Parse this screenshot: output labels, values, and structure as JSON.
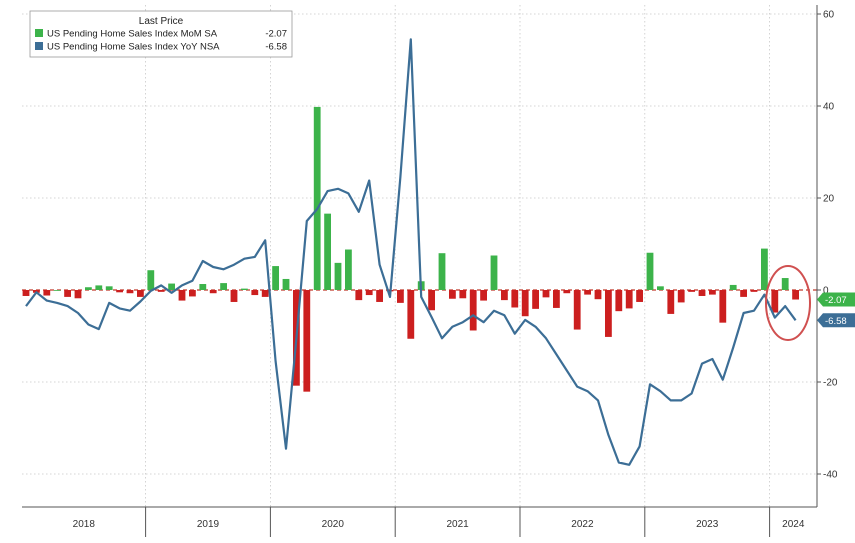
{
  "chart_data": {
    "type": "bar",
    "legend": {
      "title": "Last Price",
      "placement": "top-left",
      "entries": [
        {
          "label": "US Pending Home Sales Index MoM SA",
          "value": "-2.07",
          "color": "#3cb34a"
        },
        {
          "label": "US Pending Home Sales Index YoY NSA",
          "value": "-6.58",
          "color": "#3c6e96"
        }
      ]
    },
    "y_axis": {
      "side": "right",
      "ylim": [
        -48,
        62
      ],
      "ticks": [
        "60",
        "40",
        "20",
        "0",
        "-20",
        "-40"
      ],
      "tick_values": [
        60,
        40,
        20,
        0,
        -20,
        -40
      ]
    },
    "x_axis": {
      "years": [
        "2018",
        "2019",
        "2020",
        "2021",
        "2022",
        "2023",
        "2024"
      ],
      "start": "2018-01",
      "end": "2024-03"
    },
    "grid": true,
    "colors": {
      "positive_bar": "#3cb34a",
      "negative_bar": "#cc1f1f",
      "line": "#3c6e96",
      "mom_badge": "#3cb34a",
      "yoy_badge": "#3c6e96",
      "highlight": "#d05050"
    },
    "last_value_badges": [
      {
        "label": "-2.07",
        "value": -2.07,
        "series": "mom"
      },
      {
        "label": "-6.58",
        "value": -6.58,
        "series": "yoy"
      }
    ],
    "series": [
      {
        "name": "US Pending Home Sales Index MoM SA",
        "kind": "bar",
        "x": [
          "2018-01",
          "2018-02",
          "2018-03",
          "2018-04",
          "2018-05",
          "2018-06",
          "2018-07",
          "2018-08",
          "2018-09",
          "2018-10",
          "2018-11",
          "2018-12",
          "2019-01",
          "2019-02",
          "2019-03",
          "2019-04",
          "2019-05",
          "2019-06",
          "2019-07",
          "2019-08",
          "2019-09",
          "2019-10",
          "2019-11",
          "2019-12",
          "2020-01",
          "2020-02",
          "2020-03",
          "2020-04",
          "2020-05",
          "2020-06",
          "2020-07",
          "2020-08",
          "2020-09",
          "2020-10",
          "2020-11",
          "2020-12",
          "2021-01",
          "2021-02",
          "2021-03",
          "2021-04",
          "2021-05",
          "2021-06",
          "2021-07",
          "2021-08",
          "2021-09",
          "2021-10",
          "2021-11",
          "2021-12",
          "2022-01",
          "2022-02",
          "2022-03",
          "2022-04",
          "2022-05",
          "2022-06",
          "2022-07",
          "2022-08",
          "2022-09",
          "2022-10",
          "2022-11",
          "2022-12",
          "2023-01",
          "2023-02",
          "2023-03",
          "2023-04",
          "2023-05",
          "2023-06",
          "2023-07",
          "2023-08",
          "2023-09",
          "2023-10",
          "2023-11",
          "2023-12",
          "2024-01",
          "2024-02",
          "2024-03"
        ],
        "values": [
          -1.3,
          -0.6,
          -1.2,
          0,
          -1.5,
          -1.8,
          0.6,
          1.0,
          0.8,
          -0.5,
          -0.7,
          -1.5,
          4.3,
          -0.4,
          1.4,
          -2.3,
          -1.4,
          1.3,
          -0.7,
          1.5,
          -2.6,
          0.3,
          -1.1,
          -1.5,
          5.2,
          2.4,
          -20.8,
          -22.1,
          39.8,
          16.6,
          5.9,
          8.8,
          -2.2,
          -1.1,
          -2.6,
          -0.3,
          -2.8,
          -10.6,
          1.9,
          -4.4,
          8.0,
          -1.9,
          -1.8,
          -8.8,
          -2.3,
          7.5,
          -2.2,
          -3.8,
          -5.7,
          -4.1,
          -1.6,
          -3.9,
          -0.7,
          -8.6,
          -1.0,
          -2.0,
          -10.2,
          -4.6,
          -4.0,
          -2.6,
          8.1,
          0.8,
          -5.2,
          -2.7,
          -0.4,
          -1.3,
          -1.0,
          -7.1,
          1.1,
          -1.5,
          -0.4,
          9.0,
          -4.9,
          2.6,
          -2.07
        ]
      },
      {
        "name": "US Pending Home Sales Index YoY NSA",
        "kind": "line",
        "x": [
          "2018-01",
          "2018-02",
          "2018-03",
          "2018-04",
          "2018-05",
          "2018-06",
          "2018-07",
          "2018-08",
          "2018-09",
          "2018-10",
          "2018-11",
          "2018-12",
          "2019-01",
          "2019-02",
          "2019-03",
          "2019-04",
          "2019-05",
          "2019-06",
          "2019-07",
          "2019-08",
          "2019-09",
          "2019-10",
          "2019-11",
          "2019-12",
          "2020-01",
          "2020-02",
          "2020-03",
          "2020-04",
          "2020-05",
          "2020-06",
          "2020-07",
          "2020-08",
          "2020-09",
          "2020-10",
          "2020-11",
          "2020-12",
          "2021-01",
          "2021-02",
          "2021-03",
          "2021-04",
          "2021-05",
          "2021-06",
          "2021-07",
          "2021-08",
          "2021-09",
          "2021-10",
          "2021-11",
          "2021-12",
          "2022-01",
          "2022-02",
          "2022-03",
          "2022-04",
          "2022-05",
          "2022-06",
          "2022-07",
          "2022-08",
          "2022-09",
          "2022-10",
          "2022-11",
          "2022-12",
          "2023-01",
          "2023-02",
          "2023-03",
          "2023-04",
          "2023-05",
          "2023-06",
          "2023-07",
          "2023-08",
          "2023-09",
          "2023-10",
          "2023-11",
          "2023-12",
          "2024-01",
          "2024-02",
          "2024-03"
        ],
        "values": [
          -3.5,
          -0.5,
          -2.3,
          -2.8,
          -3.5,
          -5.0,
          -7.5,
          -8.5,
          -2.8,
          -4.0,
          -4.5,
          -2.5,
          -0.2,
          1.0,
          -0.6,
          1.0,
          2.0,
          6.3,
          5.0,
          4.5,
          5.5,
          6.8,
          7.2,
          10.8,
          -15.5,
          -34.5,
          -10.5,
          15.0,
          17.6,
          21.5,
          22.0,
          21.0,
          17.0,
          23.8,
          5.5,
          -1.5,
          24.6,
          54.5,
          -1.5,
          -5.9,
          -10.5,
          -8.0,
          -7.0,
          -5.5,
          -7.0,
          -4.5,
          -5.5,
          -9.5,
          -6.5,
          -8.0,
          -10.5,
          -14.0,
          -17.5,
          -21.0,
          -22.0,
          -24.0,
          -31.5,
          -37.5,
          -38.0,
          -34.0,
          -20.5,
          -22.0,
          -24.0,
          -24.0,
          -22.5,
          -16.0,
          -15.0,
          -19.5,
          -12.5,
          -5.0,
          -4.5,
          -1.0,
          -6.0,
          -3.5,
          -6.58
        ]
      }
    ]
  }
}
